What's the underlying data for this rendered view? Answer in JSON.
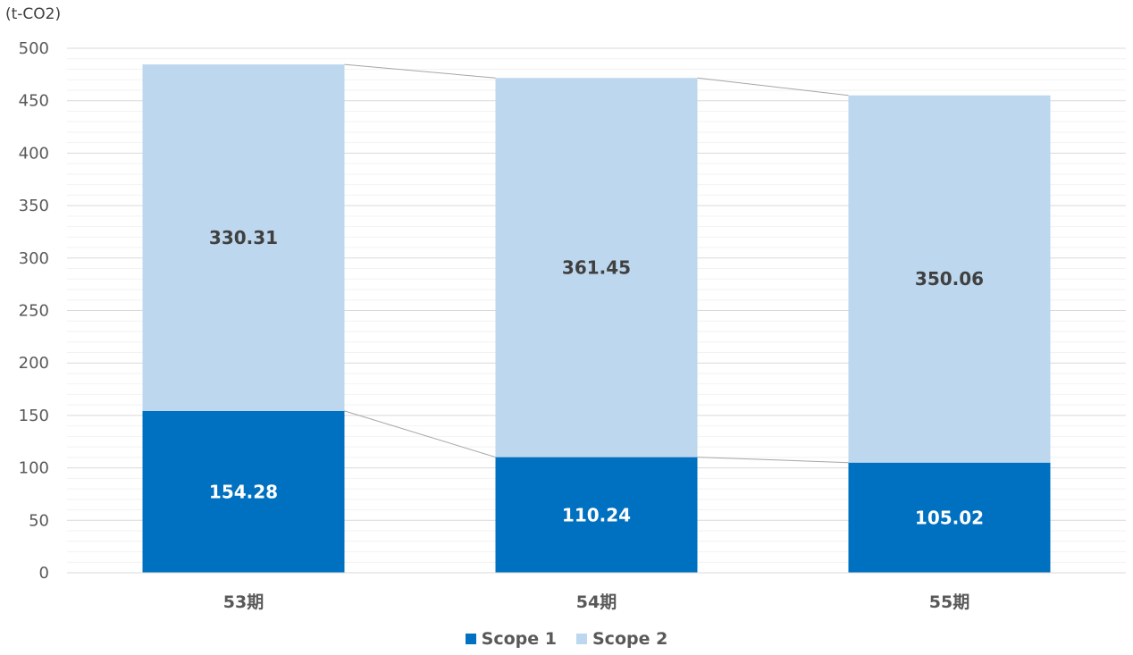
{
  "chart_data": {
    "type": "bar",
    "stacked": true,
    "unit_label": "(t-CO2)",
    "categories": [
      "53期",
      "54期",
      "55期"
    ],
    "series": [
      {
        "name": "Scope 1",
        "values": [
          154.28,
          110.24,
          105.02
        ],
        "color": "#0070C0"
      },
      {
        "name": "Scope 2",
        "values": [
          330.31,
          361.45,
          350.06
        ],
        "color": "#BDD7EE"
      }
    ],
    "ylim": [
      0,
      500
    ],
    "yticks": [
      0,
      50,
      100,
      150,
      200,
      250,
      300,
      350,
      400,
      450,
      500
    ],
    "grid": true,
    "legend_position": "bottom",
    "series_lines": true,
    "label_colors": {
      "Scope 1": "#ffffff",
      "Scope 2": "#404040"
    }
  }
}
